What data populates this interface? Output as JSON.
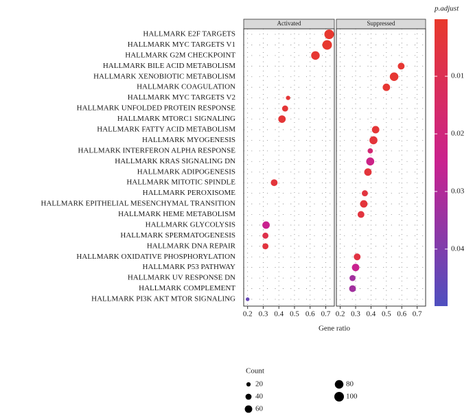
{
  "chart_data": {
    "type": "dot",
    "xlabel": "Gene ratio",
    "categories": [
      "HALLMARK E2F TARGETS",
      "HALLMARK MYC TARGETS V1",
      "HALLMARK G2M CHECKPOINT",
      "HALLMARK BILE ACID METABOLISM",
      "HALLMARK XENOBIOTIC METABOLISM",
      "HALLMARK COAGULATION",
      "HALLMARK MYC TARGETS V2",
      "HALLMARK UNFOLDED PROTEIN RESPONSE",
      "HALLMARK MTORC1 SIGNALING",
      "HALLMARK FATTY ACID METABOLISM",
      "HALLMARK MYOGENESIS",
      "HALLMARK INTERFERON ALPHA RESPONSE",
      "HALLMARK KRAS SIGNALING DN",
      "HALLMARK ADIPOGENESIS",
      "HALLMARK MITOTIC SPINDLE",
      "HALLMARK PEROXISOME",
      "HALLMARK EPITHELIAL MESENCHYMAL TRANSITION",
      "HALLMARK HEME METABOLISM",
      "HALLMARK GLYCOLYSIS",
      "HALLMARK SPERMATOGENESIS",
      "HALLMARK DNA REPAIR",
      "HALLMARK OXIDATIVE PHOSPHORYLATION",
      "HALLMARK P53 PATHWAY",
      "HALLMARK UV RESPONSE DN",
      "HALLMARK COMPLEMENT",
      "HALLMARK PI3K AKT MTOR SIGNALING"
    ],
    "xlim": [
      0.175,
      0.755
    ],
    "xticks": [
      0.2,
      0.3,
      0.4,
      0.5,
      0.6,
      0.7
    ],
    "series": [
      {
        "name": "Activated",
        "x": [
          0.722,
          0.709,
          0.634,
          null,
          null,
          null,
          0.459,
          0.44,
          0.42,
          null,
          null,
          null,
          null,
          null,
          0.37,
          null,
          null,
          null,
          0.318,
          0.314,
          0.314,
          null,
          null,
          null,
          null,
          0.2
        ],
        "count": [
          100,
          100,
          80,
          null,
          null,
          null,
          20,
          40,
          60,
          null,
          null,
          null,
          null,
          null,
          50,
          null,
          null,
          null,
          60,
          40,
          40,
          null,
          null,
          null,
          null,
          15
        ],
        "p_adjust": [
          0.001,
          0.001,
          0.002,
          null,
          null,
          null,
          0.003,
          0.003,
          0.003,
          null,
          null,
          null,
          null,
          null,
          0.004,
          null,
          null,
          null,
          0.025,
          0.008,
          0.005,
          null,
          null,
          null,
          null,
          0.045
        ]
      },
      {
        "name": "Suppressed",
        "x": [
          null,
          null,
          null,
          0.596,
          0.55,
          0.5,
          null,
          null,
          null,
          0.43,
          0.416,
          0.395,
          0.395,
          0.38,
          null,
          0.36,
          0.353,
          0.335,
          null,
          null,
          null,
          0.31,
          0.3,
          0.28,
          0.28,
          null
        ],
        "count": [
          null,
          null,
          null,
          50,
          80,
          60,
          null,
          null,
          null,
          60,
          70,
          30,
          70,
          60,
          null,
          40,
          60,
          50,
          null,
          null,
          null,
          50,
          60,
          40,
          50,
          null
        ],
        "p_adjust": [
          null,
          null,
          null,
          0.002,
          0.002,
          0.002,
          null,
          null,
          null,
          0.003,
          0.004,
          0.018,
          0.023,
          0.004,
          null,
          0.005,
          0.004,
          0.005,
          null,
          null,
          null,
          0.006,
          0.025,
          0.033,
          0.033,
          null
        ]
      }
    ],
    "color_title": "p.adjust",
    "color_lim": [
      0.0001,
      0.0499
    ],
    "color_ticks": [
      0.01,
      0.02,
      0.03,
      0.04
    ],
    "colors": [
      "#e8392b",
      "#c9218f",
      "#4e4fbf"
    ],
    "size_title": "Count",
    "size_legend": [
      20,
      40,
      60,
      80,
      100
    ],
    "grid": true
  }
}
